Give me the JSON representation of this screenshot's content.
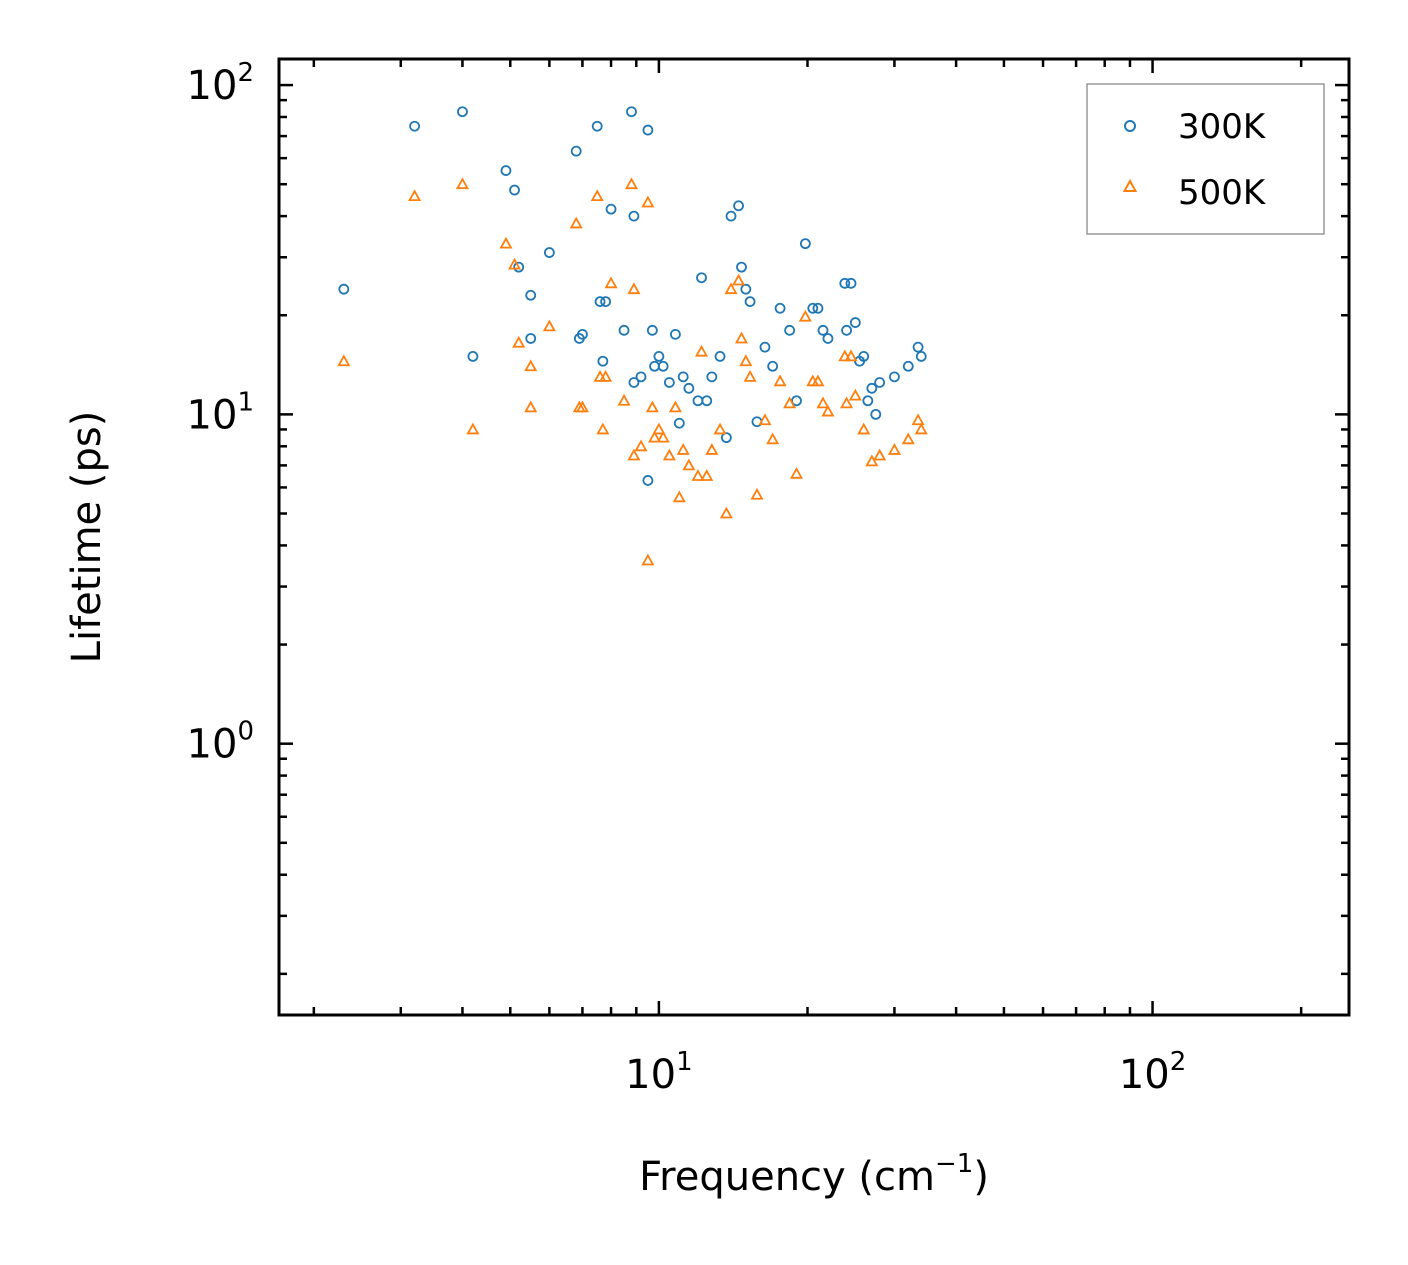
{
  "chart_data": {
    "type": "scatter",
    "xscale": "log",
    "yscale": "log",
    "xlabel": "Frequency (cm",
    "xlabel_sup": "−1",
    "xlabel_tail": ")",
    "ylabel": "Lifetime (ps)",
    "xlim": [
      1.7,
      250
    ],
    "ylim": [
      0.15,
      120
    ],
    "x_ticks": [
      {
        "value": 10,
        "base": "10",
        "exp": "1"
      },
      {
        "value": 100,
        "base": "10",
        "exp": "2"
      }
    ],
    "y_ticks": [
      {
        "value": 1,
        "base": "10",
        "exp": "0"
      },
      {
        "value": 10,
        "base": "10",
        "exp": "1"
      },
      {
        "value": 100,
        "base": "10",
        "exp": "2"
      }
    ],
    "legend": {
      "position": "top-right"
    },
    "series": [
      {
        "name": "300K",
        "marker": "circle",
        "color": "#1f77b4",
        "points": [
          [
            2.3,
            24
          ],
          [
            3.2,
            75
          ],
          [
            4.0,
            83
          ],
          [
            4.2,
            15
          ],
          [
            4.9,
            55
          ],
          [
            5.1,
            48
          ],
          [
            5.2,
            28
          ],
          [
            5.5,
            23
          ],
          [
            5.5,
            17
          ],
          [
            6.0,
            31
          ],
          [
            6.8,
            63
          ],
          [
            6.9,
            17
          ],
          [
            7.0,
            17.5
          ],
          [
            7.5,
            75
          ],
          [
            7.6,
            22
          ],
          [
            7.7,
            14.5
          ],
          [
            7.8,
            22
          ],
          [
            8.0,
            42
          ],
          [
            8.5,
            18
          ],
          [
            8.8,
            83
          ],
          [
            8.9,
            12.5
          ],
          [
            8.9,
            40
          ],
          [
            9.2,
            13
          ],
          [
            9.5,
            73
          ],
          [
            9.5,
            6.3
          ],
          [
            9.7,
            18
          ],
          [
            9.8,
            14
          ],
          [
            10.0,
            15
          ],
          [
            10.2,
            14
          ],
          [
            10.5,
            12.5
          ],
          [
            10.8,
            17.5
          ],
          [
            11.0,
            9.4
          ],
          [
            11.2,
            13
          ],
          [
            11.5,
            12
          ],
          [
            12.0,
            11
          ],
          [
            12.2,
            26
          ],
          [
            12.5,
            11
          ],
          [
            12.8,
            13
          ],
          [
            13.3,
            15
          ],
          [
            13.7,
            8.5
          ],
          [
            14.0,
            40
          ],
          [
            14.5,
            43
          ],
          [
            14.7,
            28
          ],
          [
            15.0,
            24
          ],
          [
            15.3,
            22
          ],
          [
            15.8,
            9.5
          ],
          [
            16.4,
            16
          ],
          [
            17.0,
            14
          ],
          [
            17.6,
            21
          ],
          [
            18.4,
            18
          ],
          [
            19.0,
            11
          ],
          [
            19.8,
            33
          ],
          [
            20.5,
            21
          ],
          [
            21.0,
            21
          ],
          [
            21.5,
            18
          ],
          [
            22.0,
            17
          ],
          [
            23.8,
            25
          ],
          [
            24.5,
            25
          ],
          [
            24.0,
            18
          ],
          [
            25.0,
            19
          ],
          [
            26.0,
            15
          ],
          [
            27.0,
            12
          ],
          [
            28.0,
            12.5
          ],
          [
            30.0,
            13
          ],
          [
            32.0,
            14
          ],
          [
            33.5,
            16
          ],
          [
            34.0,
            15
          ],
          [
            25.5,
            14.5
          ],
          [
            26.5,
            11
          ],
          [
            27.5,
            10
          ]
        ]
      },
      {
        "name": "500K",
        "marker": "triangle",
        "color": "#ff7f0e",
        "points": [
          [
            2.3,
            14.5
          ],
          [
            3.2,
            46
          ],
          [
            4.0,
            50
          ],
          [
            4.2,
            9
          ],
          [
            4.9,
            33
          ],
          [
            5.1,
            28.5
          ],
          [
            5.2,
            16.5
          ],
          [
            5.5,
            14
          ],
          [
            5.5,
            10.5
          ],
          [
            6.0,
            18.5
          ],
          [
            6.8,
            38
          ],
          [
            6.9,
            10.5
          ],
          [
            7.0,
            10.5
          ],
          [
            7.5,
            46
          ],
          [
            7.6,
            13
          ],
          [
            7.7,
            9
          ],
          [
            7.8,
            13
          ],
          [
            8.0,
            25
          ],
          [
            8.5,
            11
          ],
          [
            8.8,
            50
          ],
          [
            8.9,
            7.5
          ],
          [
            8.9,
            24
          ],
          [
            9.2,
            8
          ],
          [
            9.5,
            44
          ],
          [
            9.5,
            3.6
          ],
          [
            9.7,
            10.5
          ],
          [
            9.8,
            8.5
          ],
          [
            10.0,
            9
          ],
          [
            10.2,
            8.5
          ],
          [
            10.5,
            7.5
          ],
          [
            10.8,
            10.5
          ],
          [
            11.0,
            5.6
          ],
          [
            11.2,
            7.8
          ],
          [
            11.5,
            7
          ],
          [
            12.0,
            6.5
          ],
          [
            12.2,
            15.5
          ],
          [
            12.5,
            6.5
          ],
          [
            12.8,
            7.8
          ],
          [
            13.3,
            9
          ],
          [
            13.7,
            5
          ],
          [
            14.0,
            24
          ],
          [
            14.5,
            25.5
          ],
          [
            14.7,
            17
          ],
          [
            15.0,
            14.5
          ],
          [
            15.3,
            13
          ],
          [
            15.8,
            5.7
          ],
          [
            16.4,
            9.6
          ],
          [
            17.0,
            8.4
          ],
          [
            17.6,
            12.6
          ],
          [
            18.4,
            10.8
          ],
          [
            19.0,
            6.6
          ],
          [
            19.8,
            19.8
          ],
          [
            20.5,
            12.6
          ],
          [
            21.0,
            12.6
          ],
          [
            21.5,
            10.8
          ],
          [
            22.0,
            10.2
          ],
          [
            23.8,
            15
          ],
          [
            24.5,
            15
          ],
          [
            24.0,
            10.8
          ],
          [
            25.0,
            11.4
          ],
          [
            26.0,
            9
          ],
          [
            27.0,
            7.2
          ],
          [
            28.0,
            7.5
          ],
          [
            30.0,
            7.8
          ],
          [
            32.0,
            8.4
          ],
          [
            33.5,
            9.6
          ],
          [
            34.0,
            9
          ]
        ]
      }
    ]
  }
}
